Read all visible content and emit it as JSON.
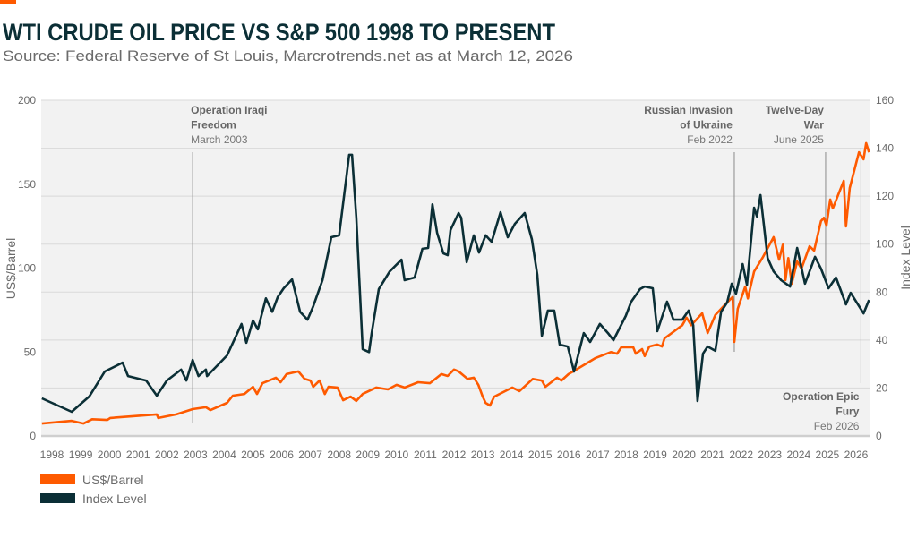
{
  "header": {
    "title": "WTI CRUDE OIL PRICE VS S&P 500 1998 TO PRESENT",
    "subtitle": "Source: Federal Reserve of St Louis, Marcrotrends.net as at March 12, 2026"
  },
  "colors": {
    "accent": "#fe5a00",
    "dark": "#0b2f36",
    "plot_bg": "#f2f2f2",
    "grid": "#d9d9d9"
  },
  "chart_data": {
    "type": "line",
    "title": "WTI CRUDE OIL PRICE VS S&P 500 1998 TO PRESENT",
    "ylabel_left": "US$/Barrel",
    "ylabel_right": "Index Level",
    "ylim_left": [
      0,
      200
    ],
    "left_ticks": [
      "0",
      "50",
      "100",
      "150",
      "200"
    ],
    "right_ticks": [
      "0",
      "20",
      "40",
      "80",
      "100",
      "120",
      "140",
      "160"
    ],
    "x_ticks": [
      "1998",
      "1999",
      "2000",
      "2001",
      "2002",
      "2003",
      "2004",
      "2005",
      "2006",
      "2007",
      "2008",
      "2009",
      "2010",
      "2011",
      "2012",
      "2013",
      "2014",
      "2015",
      "2016",
      "2017",
      "2018",
      "2019",
      "2020",
      "2021",
      "2022",
      "2023",
      "2024",
      "2025",
      "2026"
    ],
    "grid": true,
    "legend_position": "bottom-left",
    "series": [
      {
        "name": "US$/Barrel",
        "color": "#fe5a00",
        "axis": "right",
        "points": [
          [
            1997.65,
            5.2
          ],
          [
            1998.69,
            6.3
          ],
          [
            1999.1,
            5.2
          ],
          [
            1999.4,
            7
          ],
          [
            1999.93,
            6.7
          ],
          [
            2000.03,
            7.5
          ],
          [
            2001.65,
            9
          ],
          [
            2001.7,
            7.5
          ],
          [
            2002.33,
            9
          ],
          [
            2002.9,
            11.2
          ],
          [
            2003.36,
            12
          ],
          [
            2003.52,
            10.8
          ],
          [
            2004.1,
            13.8
          ],
          [
            2004.3,
            16.8
          ],
          [
            2004.7,
            17.5
          ],
          [
            2005.0,
            20.5
          ],
          [
            2005.14,
            17.5
          ],
          [
            2005.33,
            22
          ],
          [
            2005.8,
            24.3
          ],
          [
            2005.96,
            22.4
          ],
          [
            2006.17,
            25.8
          ],
          [
            2006.58,
            26.9
          ],
          [
            2006.8,
            23.8
          ],
          [
            2007.0,
            23.1
          ],
          [
            2007.1,
            20.5
          ],
          [
            2007.32,
            23.1
          ],
          [
            2007.5,
            17.5
          ],
          [
            2007.63,
            20.5
          ],
          [
            2007.94,
            20.2
          ],
          [
            2008.14,
            14.9
          ],
          [
            2008.4,
            16.4
          ],
          [
            2008.6,
            14.6
          ],
          [
            2008.82,
            17.5
          ],
          [
            2009.29,
            20.2
          ],
          [
            2009.7,
            19.4
          ],
          [
            2010.0,
            21.3
          ],
          [
            2010.28,
            20.2
          ],
          [
            2010.75,
            22.4
          ],
          [
            2011.16,
            22
          ],
          [
            2011.56,
            25.8
          ],
          [
            2011.78,
            25
          ],
          [
            2012.0,
            27.7
          ],
          [
            2012.16,
            26.9
          ],
          [
            2012.47,
            23.8
          ],
          [
            2012.69,
            24.3
          ],
          [
            2012.85,
            21.3
          ],
          [
            2013.0,
            16.4
          ],
          [
            2013.1,
            13.8
          ],
          [
            2013.25,
            12.7
          ],
          [
            2013.4,
            16.4
          ],
          [
            2014.03,
            20.2
          ],
          [
            2014.28,
            18.7
          ],
          [
            2014.74,
            23.8
          ],
          [
            2015.06,
            23.1
          ],
          [
            2015.18,
            20.5
          ],
          [
            2015.59,
            24.3
          ],
          [
            2015.74,
            23.1
          ],
          [
            2015.99,
            25.8
          ],
          [
            2016.15,
            26.9
          ],
          [
            2016.93,
            32.5
          ],
          [
            2017.46,
            35
          ],
          [
            2017.68,
            34.3
          ],
          [
            2017.83,
            37
          ],
          [
            2018.24,
            37
          ],
          [
            2018.33,
            34.3
          ],
          [
            2018.55,
            36.2
          ],
          [
            2018.64,
            33.3
          ],
          [
            2018.8,
            37.3
          ],
          [
            2019.08,
            38.1
          ],
          [
            2019.24,
            37.3
          ],
          [
            2019.33,
            41.4
          ],
          [
            2019.95,
            52.4
          ],
          [
            2020.1,
            58.6
          ],
          [
            2020.26,
            52.4
          ],
          [
            2020.64,
            62.3
          ],
          [
            2020.83,
            45.9
          ],
          [
            2021.1,
            60.9
          ],
          [
            2021.51,
            71.4
          ],
          [
            2021.7,
            75.9
          ],
          [
            2021.76,
            39.2
          ],
          [
            2021.88,
            66
          ],
          [
            2022.14,
            82.3
          ],
          [
            2022.23,
            74.7
          ],
          [
            2022.45,
            88.6
          ],
          [
            2022.76,
            94.7
          ],
          [
            2023.13,
            102.9
          ],
          [
            2023.32,
            93.5
          ],
          [
            2023.45,
            99.8
          ],
          [
            2023.54,
            85
          ],
          [
            2023.64,
            94.2
          ],
          [
            2023.76,
            83.5
          ],
          [
            2023.95,
            92.8
          ],
          [
            2024.1,
            89.8
          ],
          [
            2024.38,
            99.1
          ],
          [
            2024.54,
            97.3
          ],
          [
            2024.78,
            109.6
          ],
          [
            2024.88,
            111
          ],
          [
            2024.97,
            107.7
          ],
          [
            2025.1,
            118.6
          ],
          [
            2025.19,
            114.9
          ],
          [
            2025.57,
            126.4
          ],
          [
            2025.65,
            107.4
          ],
          [
            2025.78,
            123.4
          ],
          [
            2026.1,
            138.3
          ],
          [
            2026.26,
            135.4
          ],
          [
            2026.35,
            142.1
          ],
          [
            2026.45,
            138.3
          ]
        ]
      },
      {
        "name": "Index Level",
        "color": "#0b2f36",
        "axis": "left",
        "points": [
          [
            1997.65,
            22.4
          ],
          [
            1998.69,
            14.4
          ],
          [
            1999.3,
            23.5
          ],
          [
            1999.84,
            38.4
          ],
          [
            2000.46,
            43.7
          ],
          [
            2000.65,
            35.7
          ],
          [
            2001.28,
            33
          ],
          [
            2001.65,
            24
          ],
          [
            2002.0,
            33
          ],
          [
            2002.5,
            39.5
          ],
          [
            2002.68,
            33
          ],
          [
            2002.9,
            45.3
          ],
          [
            2003.1,
            35.7
          ],
          [
            2003.36,
            39.5
          ],
          [
            2003.4,
            35.7
          ],
          [
            2004.1,
            48
          ],
          [
            2004.6,
            66.7
          ],
          [
            2004.77,
            55.5
          ],
          [
            2005.0,
            68.8
          ],
          [
            2005.17,
            63.5
          ],
          [
            2005.45,
            82
          ],
          [
            2005.67,
            74
          ],
          [
            2005.86,
            82.7
          ],
          [
            2006.07,
            88
          ],
          [
            2006.36,
            93.3
          ],
          [
            2006.64,
            74
          ],
          [
            2006.9,
            69.3
          ],
          [
            2007.1,
            77.3
          ],
          [
            2007.42,
            92.8
          ],
          [
            2007.73,
            118.4
          ],
          [
            2008.0,
            119.5
          ],
          [
            2008.35,
            167.5
          ],
          [
            2008.45,
            167.5
          ],
          [
            2008.6,
            130
          ],
          [
            2008.82,
            51.7
          ],
          [
            2009.04,
            50
          ],
          [
            2009.13,
            60.8
          ],
          [
            2009.38,
            87.5
          ],
          [
            2009.76,
            98
          ],
          [
            2010.17,
            105
          ],
          [
            2010.28,
            92.8
          ],
          [
            2010.63,
            94.4
          ],
          [
            2010.9,
            111.5
          ],
          [
            2011.1,
            112
          ],
          [
            2011.25,
            138
          ],
          [
            2011.41,
            121
          ],
          [
            2011.63,
            108.8
          ],
          [
            2011.78,
            107.7
          ],
          [
            2011.88,
            122.7
          ],
          [
            2012.16,
            132.8
          ],
          [
            2012.25,
            130
          ],
          [
            2012.44,
            103.5
          ],
          [
            2012.69,
            119.5
          ],
          [
            2012.87,
            109.3
          ],
          [
            2013.1,
            119.5
          ],
          [
            2013.31,
            115.7
          ],
          [
            2013.62,
            133.3
          ],
          [
            2013.87,
            118.4
          ],
          [
            2014.12,
            126.4
          ],
          [
            2014.46,
            132.8
          ],
          [
            2014.71,
            117.3
          ],
          [
            2014.9,
            96
          ],
          [
            2015.06,
            59.7
          ],
          [
            2015.27,
            74.7
          ],
          [
            2015.49,
            74.7
          ],
          [
            2015.68,
            54.4
          ],
          [
            2015.96,
            53.3
          ],
          [
            2016.18,
            38.4
          ],
          [
            2016.52,
            61.3
          ],
          [
            2016.74,
            56
          ],
          [
            2017.08,
            66.7
          ],
          [
            2017.36,
            61.3
          ],
          [
            2017.55,
            57
          ],
          [
            2017.98,
            71.5
          ],
          [
            2018.17,
            80
          ],
          [
            2018.48,
            87.5
          ],
          [
            2018.64,
            89
          ],
          [
            2018.92,
            88
          ],
          [
            2019.08,
            62.4
          ],
          [
            2019.42,
            80
          ],
          [
            2019.64,
            69.3
          ],
          [
            2019.95,
            69.3
          ],
          [
            2020.17,
            74.7
          ],
          [
            2020.33,
            66
          ],
          [
            2020.48,
            20.8
          ],
          [
            2020.67,
            49
          ],
          [
            2020.83,
            53.3
          ],
          [
            2021.1,
            50.7
          ],
          [
            2021.3,
            74
          ],
          [
            2021.51,
            79.5
          ],
          [
            2021.67,
            90.7
          ],
          [
            2021.82,
            84.8
          ],
          [
            2022.05,
            102.4
          ],
          [
            2022.2,
            90
          ],
          [
            2022.45,
            136
          ],
          [
            2022.55,
            130.7
          ],
          [
            2022.67,
            143.5
          ],
          [
            2022.92,
            106
          ],
          [
            2023.13,
            98
          ],
          [
            2023.39,
            92.8
          ],
          [
            2023.7,
            89
          ],
          [
            2023.95,
            112
          ],
          [
            2024.22,
            90.7
          ],
          [
            2024.57,
            106.7
          ],
          [
            2024.78,
            99.7
          ],
          [
            2025.04,
            88
          ],
          [
            2025.3,
            94.4
          ],
          [
            2025.65,
            78.4
          ],
          [
            2025.81,
            85.3
          ],
          [
            2026.26,
            73
          ],
          [
            2026.45,
            81
          ]
        ]
      }
    ],
    "annotations": [
      {
        "x": 2002.9,
        "lines": [
          "Operation Iraqi",
          "Freedom",
          "March 2003"
        ],
        "align": "left",
        "position": "top"
      },
      {
        "x": 2021.76,
        "lines": [
          "Russian Invasion",
          "of Ukraine",
          "Feb 2022"
        ],
        "align": "right",
        "position": "top"
      },
      {
        "x": 2024.94,
        "lines": [
          "Twelve-Day",
          "War",
          "June 2025"
        ],
        "align": "right",
        "position": "top"
      },
      {
        "x": 2026.17,
        "lines": [
          "Operation Epic",
          "Fury",
          "Feb 2026"
        ],
        "align": "right",
        "position": "bottom"
      }
    ]
  },
  "legend": {
    "items": [
      {
        "label": "US$/Barrel",
        "color": "#fe5a00"
      },
      {
        "label": "Index Level",
        "color": "#0b2f36"
      }
    ]
  }
}
